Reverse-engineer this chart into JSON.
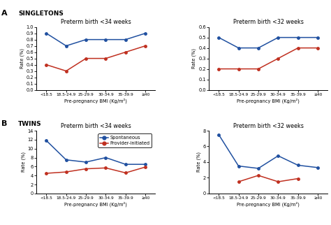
{
  "x_labels": [
    "<18.5",
    "18.5-24.9",
    "25-29.9",
    "30-34.9",
    "35-39.9",
    "≥40"
  ],
  "x_positions": [
    0,
    1,
    2,
    3,
    4,
    5
  ],
  "A_34_blue": [
    0.9,
    0.7,
    0.8,
    0.8,
    0.8,
    0.9
  ],
  "A_34_red": [
    0.4,
    0.3,
    0.5,
    0.5,
    0.6,
    0.7
  ],
  "A_34_ylim": [
    0,
    1.0
  ],
  "A_34_yticks": [
    0,
    0.1,
    0.2,
    0.3,
    0.4,
    0.5,
    0.6,
    0.7,
    0.8,
    0.9,
    1.0
  ],
  "A_32_blue": [
    0.5,
    0.4,
    0.4,
    0.5,
    0.5,
    0.5
  ],
  "A_32_red": [
    0.2,
    0.2,
    0.2,
    0.3,
    0.4,
    0.4
  ],
  "A_32_ylim": [
    0,
    0.6
  ],
  "A_32_yticks": [
    0,
    0.1,
    0.2,
    0.3,
    0.4,
    0.5,
    0.6
  ],
  "B_34_blue": [
    11.8,
    7.5,
    7.0,
    8.0,
    6.5,
    6.5
  ],
  "B_34_red": [
    4.5,
    4.8,
    5.5,
    5.7,
    4.6,
    5.9
  ],
  "B_34_ylim": [
    0,
    14
  ],
  "B_34_yticks": [
    0,
    2,
    4,
    6,
    8,
    10,
    12,
    14
  ],
  "B_32_blue": [
    7.5,
    3.5,
    3.2,
    4.8,
    3.6,
    3.3
  ],
  "B_32_red": [
    null,
    1.5,
    2.3,
    1.5,
    1.9,
    null
  ],
  "B_32_ylim": [
    0,
    8
  ],
  "B_32_yticks": [
    0,
    2,
    4,
    6,
    8
  ],
  "blue_color": "#2050A0",
  "red_color": "#C03020",
  "sub_34": "Preterm birth <34 weeks",
  "sub_32": "Preterm birth <32 weeks",
  "xlabel": "Pre-pregnancy BMI (Kg/m²)",
  "ylabel": "Rate (%)",
  "legend_blue": "Spontaneous",
  "legend_red": "Provider-initiated",
  "label_A": "A",
  "label_B": "B",
  "label_singletons": "SINGLETONS",
  "label_twins": "TWINS"
}
